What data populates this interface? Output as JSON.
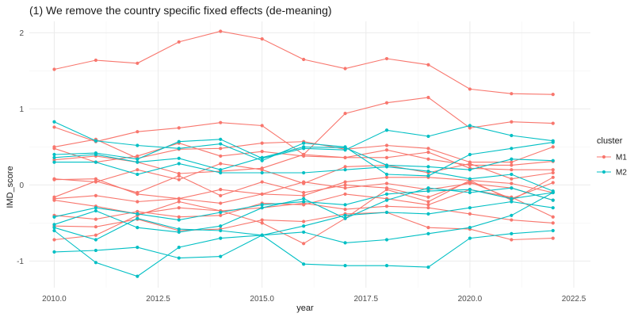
{
  "chart_data": {
    "type": "line",
    "title": "(1) We remove the country specific fixed effects (de-meaning)",
    "xlabel": "year",
    "ylabel": "IMD_score",
    "xlim": [
      2009.4,
      2022.9
    ],
    "ylim": [
      -1.35,
      2.15
    ],
    "x_ticks": [
      2010,
      2012.5,
      2015,
      2017.5,
      2020,
      2022.5
    ],
    "x_tick_labels": [
      "2010.0",
      "2012.5",
      "2015.0",
      "2017.5",
      "2020.0",
      "2022.5"
    ],
    "y_ticks": [
      -1,
      0,
      1,
      2
    ],
    "y_tick_labels": [
      "-1",
      "0",
      "1",
      "2"
    ],
    "grid": true,
    "theme": "minimal",
    "x": [
      2010,
      2011,
      2012,
      2013,
      2014,
      2015,
      2016,
      2017,
      2018,
      2019,
      2020,
      2021,
      2022
    ],
    "legend": {
      "title": "cluster",
      "position": "right",
      "entries": [
        {
          "label": "M1",
          "color": "#F8766D"
        },
        {
          "label": "M2",
          "color": "#00BFC4"
        }
      ]
    },
    "series": [
      {
        "cluster": "M1",
        "values": [
          1.52,
          1.64,
          1.6,
          1.88,
          2.02,
          1.92,
          1.65,
          1.53,
          1.66,
          1.58,
          1.26,
          1.2,
          1.19
        ]
      },
      {
        "cluster": "M1",
        "values": [
          0.76,
          0.57,
          0.7,
          0.75,
          0.82,
          0.78,
          0.4,
          0.94,
          1.08,
          1.15,
          0.75,
          0.83,
          0.81
        ]
      },
      {
        "cluster": "M1",
        "values": [
          0.5,
          0.6,
          0.35,
          0.47,
          0.48,
          0.55,
          0.57,
          0.47,
          0.52,
          0.48,
          0.3,
          0.3,
          0.5
        ]
      },
      {
        "cluster": "M1",
        "values": [
          0.48,
          0.3,
          0.38,
          0.55,
          0.38,
          0.44,
          0.38,
          0.36,
          0.46,
          0.34,
          0.26,
          0.26,
          0.31
        ]
      },
      {
        "cluster": "M1",
        "values": [
          0.33,
          0.38,
          0.3,
          0.15,
          0.18,
          0.22,
          0.4,
          0.36,
          0.36,
          0.43,
          0.22,
          0.2,
          0.2
        ]
      },
      {
        "cluster": "M1",
        "values": [
          0.08,
          0.04,
          0.2,
          0.07,
          0.28,
          0.2,
          0.02,
          0.24,
          0.26,
          0.16,
          0.28,
          0.08,
          0.16
        ]
      },
      {
        "cluster": "M1",
        "values": [
          -0.16,
          0.05,
          -0.1,
          0.12,
          -0.14,
          0.04,
          -0.1,
          0.0,
          -0.04,
          -0.16,
          0.04,
          -0.18,
          0.03
        ]
      },
      {
        "cluster": "M1",
        "values": [
          -0.72,
          -0.66,
          -0.4,
          -0.22,
          -0.34,
          -0.5,
          -0.77,
          -0.44,
          -0.06,
          -0.22,
          0.06,
          -0.2,
          0.1
        ]
      },
      {
        "cluster": "M1",
        "values": [
          -0.54,
          -0.55,
          -0.45,
          -0.6,
          -0.58,
          -0.46,
          -0.48,
          -0.38,
          -0.36,
          -0.56,
          -0.58,
          -0.72,
          -0.7
        ]
      },
      {
        "cluster": "M1",
        "values": [
          -0.2,
          -0.28,
          -0.38,
          -0.3,
          -0.34,
          -0.3,
          -0.24,
          -0.32,
          -0.28,
          -0.3,
          -0.38,
          -0.46,
          -0.5
        ]
      },
      {
        "cluster": "M1",
        "values": [
          -0.4,
          -0.45,
          -0.35,
          -0.42,
          -0.4,
          -0.24,
          -0.26,
          -0.12,
          -0.18,
          -0.26,
          -0.06,
          -0.16,
          -0.42
        ]
      },
      {
        "cluster": "M1",
        "values": [
          0.07,
          0.08,
          -0.12,
          -0.18,
          -0.06,
          -0.12,
          0.04,
          -0.04,
          0.02,
          -0.06,
          0.02,
          -0.04,
          -0.2
        ]
      },
      {
        "cluster": "M1",
        "values": [
          -0.18,
          -0.14,
          -0.22,
          -0.18,
          -0.24,
          -0.12,
          -0.14,
          0.04,
          0.1,
          0.1,
          0.06,
          0.02,
          -0.1
        ]
      },
      {
        "cluster": "M2",
        "values": [
          0.83,
          0.58,
          0.52,
          0.48,
          0.54,
          0.32,
          0.55,
          0.5,
          0.14,
          0.12,
          0.4,
          0.48,
          0.56
        ]
      },
      {
        "cluster": "M2",
        "values": [
          0.4,
          0.42,
          0.34,
          0.57,
          0.6,
          0.35,
          0.48,
          0.46,
          0.72,
          0.64,
          0.78,
          0.65,
          0.58
        ]
      },
      {
        "cluster": "M2",
        "values": [
          0.36,
          0.4,
          0.3,
          0.35,
          0.2,
          0.36,
          0.5,
          0.49,
          0.26,
          0.24,
          0.2,
          0.34,
          0.32
        ]
      },
      {
        "cluster": "M2",
        "values": [
          0.3,
          0.3,
          0.14,
          0.28,
          0.16,
          0.16,
          0.16,
          0.2,
          0.24,
          0.18,
          0.08,
          0.14,
          -0.08
        ]
      },
      {
        "cluster": "M2",
        "values": [
          -0.42,
          -0.3,
          -0.38,
          -0.46,
          -0.36,
          -0.26,
          -0.22,
          -0.26,
          -0.12,
          -0.08,
          -0.06,
          -0.18,
          -0.1
        ]
      },
      {
        "cluster": "M2",
        "values": [
          -0.52,
          -0.34,
          -0.56,
          -0.62,
          -0.54,
          -0.3,
          -0.18,
          -0.44,
          -0.2,
          -0.04,
          -0.1,
          -0.04,
          -0.2
        ]
      },
      {
        "cluster": "M2",
        "values": [
          -0.6,
          -1.02,
          -1.2,
          -0.82,
          -0.7,
          -0.66,
          -0.54,
          -0.4,
          -0.36,
          -0.38,
          -0.3,
          -0.22,
          -0.3
        ]
      },
      {
        "cluster": "M2",
        "values": [
          -0.88,
          -0.86,
          -0.82,
          -0.96,
          -0.94,
          -0.66,
          -1.04,
          -1.06,
          -1.06,
          -1.08,
          -0.7,
          -0.64,
          -0.6
        ]
      },
      {
        "cluster": "M2",
        "values": [
          -0.56,
          -0.72,
          -0.44,
          -0.58,
          -0.6,
          -0.66,
          -0.62,
          -0.76,
          -0.72,
          -0.64,
          -0.56,
          -0.4,
          -0.1
        ]
      }
    ]
  }
}
